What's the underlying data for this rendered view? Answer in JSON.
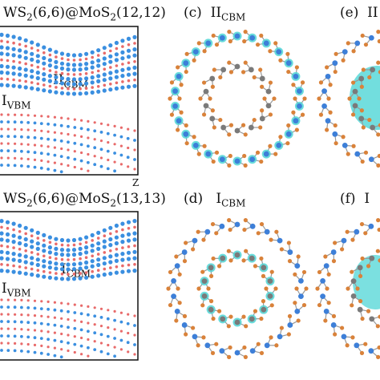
{
  "figure": {
    "panel_top": {
      "title": {
        "base": "WS",
        "s1": "2",
        "mid": "(6,6)@MoS",
        "s2": "2",
        "tail": "(12,12)"
      },
      "label_cbm": {
        "main": "II",
        "sub": "CBM"
      },
      "label_vbm": {
        "main": "I",
        "sub": "VBM"
      },
      "axis_label": "Z"
    },
    "panel_bottom": {
      "title": {
        "base": "WS",
        "s1": "2",
        "mid": "(6,6)@MoS",
        "s2": "2",
        "tail": "(13,13)"
      },
      "label_cbm": {
        "main": "I",
        "sub": "CBM"
      },
      "label_vbm": {
        "main": "I",
        "sub": "VBM"
      }
    },
    "panel_c": {
      "letter": "(c)",
      "main": "II",
      "sub": "CBM"
    },
    "panel_d": {
      "letter": "(d)",
      "main": "I",
      "sub": "CBM"
    },
    "panel_e": {
      "letter": "(e)",
      "main": "II"
    },
    "panel_f": {
      "letter": "(f)",
      "main": "I"
    },
    "colors": {
      "blue_band": "#3b8fe0",
      "red_band": "#e86a6a",
      "orb_cyan": "#4fd6d6",
      "atom_orange": "#d9823a",
      "atom_blue": "#3d7fd8",
      "atom_grey": "#7a7a7a"
    }
  }
}
